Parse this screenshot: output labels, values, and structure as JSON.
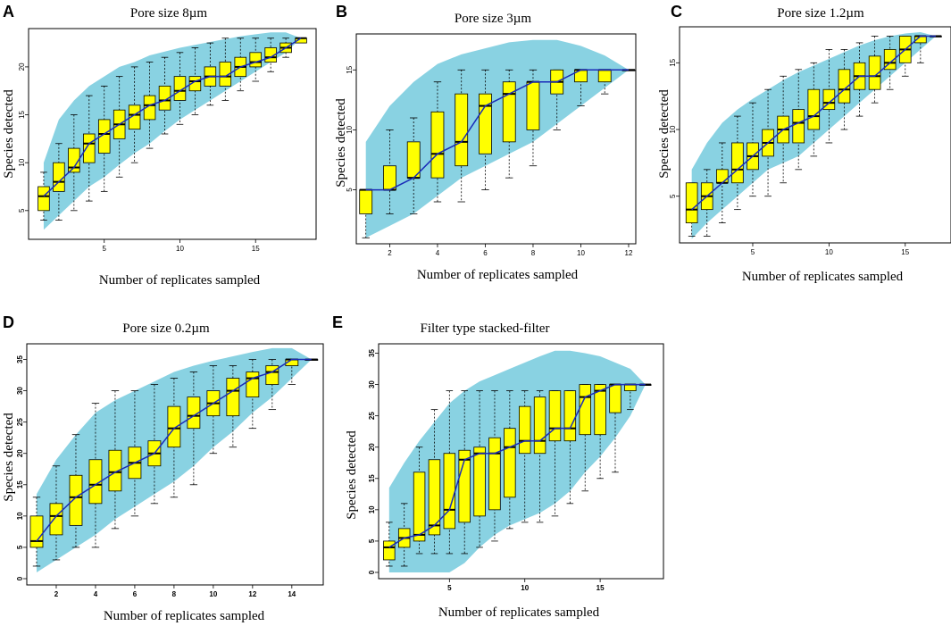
{
  "figure": {
    "colors": {
      "band": "#89d2e2",
      "box": "#ffff00",
      "line": "#1a2bb8",
      "frame": "#000000"
    }
  },
  "chart_data": [
    {
      "panel": "A",
      "type": "box",
      "title": "Pore size 8µm",
      "xlabel": "Number of replicates sampled",
      "ylabel": "Species detected",
      "xlim": [
        0,
        19
      ],
      "ylim": [
        2,
        24
      ],
      "xticks": [
        5,
        10,
        15
      ],
      "yticks": [
        5,
        10,
        15,
        20
      ],
      "x": [
        1,
        2,
        3,
        4,
        5,
        6,
        7,
        8,
        9,
        10,
        11,
        12,
        13,
        14,
        15,
        16,
        17,
        18
      ],
      "q1": [
        5,
        7,
        9,
        10,
        11,
        12.5,
        13.5,
        14.5,
        15.5,
        16.5,
        17.5,
        18,
        18,
        19,
        20,
        20.5,
        21.5,
        22.5
      ],
      "median": [
        6.5,
        8,
        9.5,
        12,
        13,
        14,
        15,
        16,
        16.5,
        17.5,
        18.5,
        19,
        19,
        20,
        20.5,
        21,
        22,
        23
      ],
      "q3": [
        7.5,
        10,
        11.5,
        13,
        14.5,
        15.5,
        16,
        17,
        18,
        19,
        19,
        20,
        20.5,
        21,
        21.5,
        22,
        22.5,
        23
      ],
      "low": [
        4,
        4,
        5,
        6,
        7,
        8.5,
        10,
        11.5,
        13,
        14,
        15,
        16,
        16.5,
        17.5,
        18.5,
        19.5,
        21,
        23
      ],
      "high": [
        9,
        12,
        15,
        17,
        18,
        19,
        20,
        20.5,
        21,
        21.5,
        22,
        22.5,
        23,
        23,
        23,
        23,
        23,
        23
      ],
      "band_upper": [
        10,
        14.5,
        16.5,
        18,
        19,
        20,
        20.5,
        21.2,
        21.6,
        22,
        22.3,
        22.6,
        22.9,
        23.2,
        23.4,
        23.6,
        23.6,
        23
      ],
      "band_lower": [
        3,
        4.5,
        6,
        7.5,
        8.5,
        9.8,
        11,
        12,
        13.3,
        14.5,
        15.5,
        16.5,
        17.5,
        18.5,
        19.5,
        20.5,
        21.5,
        23
      ]
    },
    {
      "panel": "B",
      "type": "box",
      "title": "Pore size 3µm",
      "xlabel": "Number of replicates sampled",
      "ylabel": "Species detected",
      "xlim": [
        0.6,
        12.3
      ],
      "ylim": [
        0.5,
        18
      ],
      "xticks": [
        2,
        4,
        6,
        8,
        10,
        12
      ],
      "yticks": [
        5,
        10,
        15
      ],
      "x": [
        1,
        2,
        3,
        4,
        5,
        6,
        7,
        8,
        9,
        10,
        11,
        12
      ],
      "q1": [
        3,
        5,
        6,
        6,
        7,
        8,
        9,
        10,
        13,
        14,
        14,
        15
      ],
      "median": [
        5,
        5,
        6,
        8,
        9,
        12,
        13,
        14,
        14,
        15,
        15,
        15
      ],
      "q3": [
        5,
        7,
        9,
        11.5,
        13,
        13,
        14,
        14,
        15,
        15,
        15,
        15
      ],
      "low": [
        1,
        3,
        3,
        4,
        4,
        5,
        6,
        7,
        10,
        12,
        13,
        15
      ],
      "high": [
        5,
        10,
        11,
        14,
        15,
        15,
        15,
        15,
        15,
        15,
        15,
        15
      ],
      "band_upper": [
        9,
        12,
        14,
        15.5,
        16.3,
        16.8,
        17.3,
        17.5,
        17.5,
        17,
        16.2,
        15
      ],
      "band_lower": [
        1,
        2,
        3,
        4.5,
        6,
        7,
        8,
        9,
        10.5,
        12,
        13.5,
        15
      ]
    },
    {
      "panel": "C",
      "type": "box",
      "title": "Pore size 1.2µm",
      "xlabel": "Number of replicates sampled",
      "ylabel": "Species detected",
      "xlim": [
        0.2,
        18
      ],
      "ylim": [
        1.5,
        17.7
      ],
      "xticks": [
        5,
        10,
        15
      ],
      "yticks": [
        5,
        10,
        15
      ],
      "x": [
        1,
        2,
        3,
        4,
        5,
        6,
        7,
        8,
        9,
        10,
        11,
        12,
        13,
        14,
        15,
        16,
        17
      ],
      "q1": [
        3,
        4,
        6,
        6,
        7,
        8,
        9,
        9,
        10,
        11.5,
        12,
        13,
        13,
        14.5,
        15,
        16.5,
        17
      ],
      "median": [
        4,
        5,
        6,
        7,
        8,
        9,
        10,
        10.5,
        11,
        12,
        13,
        14,
        14,
        15,
        16,
        17,
        17
      ],
      "q3": [
        6,
        6,
        7,
        9,
        9,
        10,
        11,
        11.5,
        13,
        13,
        14.5,
        15,
        15.5,
        16,
        17,
        17,
        17
      ],
      "low": [
        2,
        2,
        3,
        4,
        5,
        5,
        6,
        7,
        8,
        9,
        10,
        11,
        12,
        13,
        14,
        15,
        17
      ],
      "high": [
        6,
        7,
        9,
        11,
        12,
        13,
        14,
        14.5,
        15,
        16,
        16,
        16.5,
        17,
        17,
        17,
        17,
        17
      ],
      "band_upper": [
        7,
        9,
        10.5,
        11.5,
        12.3,
        13,
        13.7,
        14.3,
        14.8,
        15.3,
        15.8,
        16.3,
        16.7,
        17,
        17.2,
        17.3,
        17
      ],
      "band_lower": [
        1.8,
        3,
        4,
        5,
        6,
        7,
        7.5,
        8,
        9,
        10,
        11,
        12,
        13,
        14,
        15,
        16,
        17
      ]
    },
    {
      "panel": "D",
      "type": "box",
      "title": "Pore size 0.2µm",
      "xlabel": "Number of replicates sampled",
      "ylabel": "Species detected",
      "xlim": [
        0.5,
        15.6
      ],
      "ylim": [
        -1,
        37.5
      ],
      "xticks": [
        2,
        4,
        6,
        8,
        10,
        12,
        14
      ],
      "yticks": [
        0,
        5,
        10,
        15,
        20,
        25,
        30,
        35
      ],
      "x": [
        1,
        2,
        3,
        4,
        5,
        6,
        7,
        8,
        9,
        10,
        11,
        12,
        13,
        14,
        15
      ],
      "q1": [
        5,
        7,
        8.5,
        12,
        14,
        16,
        18,
        21,
        24,
        26,
        26,
        29,
        31,
        34,
        35
      ],
      "median": [
        6,
        10,
        13,
        15,
        17,
        18.5,
        20,
        24,
        26,
        28,
        30,
        32,
        33,
        35,
        35
      ],
      "q3": [
        10,
        12,
        16.5,
        19,
        20.5,
        21,
        22,
        27.5,
        29,
        30,
        32,
        33,
        34,
        35,
        35
      ],
      "low": [
        2,
        3,
        5,
        5,
        8,
        10,
        12,
        13,
        15,
        20,
        21,
        24,
        27,
        31,
        35
      ],
      "high": [
        13,
        18,
        23,
        28,
        30,
        30,
        31,
        32,
        33,
        34,
        34,
        35,
        35,
        35,
        35
      ],
      "band_upper": [
        13.5,
        19,
        23,
        26.5,
        28.5,
        30,
        31.5,
        33,
        34,
        34.8,
        35.5,
        36.2,
        36.8,
        36.8,
        35
      ],
      "band_lower": [
        1,
        3,
        5,
        7,
        9.5,
        11.5,
        13.5,
        15.5,
        18,
        21,
        23.5,
        26.5,
        29,
        32,
        35
      ]
    },
    {
      "panel": "E",
      "type": "box",
      "title": "Filter type stacked-filter",
      "xlabel": "Number of replicates sampled",
      "ylabel": "Species detected",
      "xlim": [
        0.3,
        19.2
      ],
      "ylim": [
        -1,
        36.5
      ],
      "xticks": [
        5,
        10,
        15
      ],
      "yticks": [
        0,
        5,
        10,
        15,
        20,
        25,
        30,
        35
      ],
      "x": [
        1,
        2,
        3,
        4,
        5,
        6,
        7,
        8,
        9,
        10,
        11,
        12,
        13,
        14,
        15,
        16,
        17,
        18
      ],
      "q1": [
        2,
        4,
        5,
        6,
        7,
        8,
        9,
        10,
        12,
        19,
        19,
        21,
        21,
        22,
        22,
        25.5,
        29,
        30
      ],
      "median": [
        4,
        5.5,
        6,
        7.5,
        10,
        18,
        19,
        19,
        20,
        21,
        21,
        23,
        23,
        28,
        29,
        30,
        30,
        30
      ],
      "q3": [
        5,
        7,
        16,
        18,
        19,
        19.5,
        20,
        21.5,
        23,
        26.5,
        28,
        29,
        29,
        30,
        30,
        30,
        30,
        30
      ],
      "low": [
        1,
        1,
        3,
        3,
        3,
        3,
        4,
        5,
        7,
        8,
        8,
        9,
        11,
        13,
        15,
        16,
        26,
        30
      ],
      "high": [
        8,
        11,
        20,
        26,
        29,
        29,
        29,
        29,
        29,
        29,
        29,
        29,
        29,
        30,
        30,
        30,
        30,
        30
      ],
      "band_upper": [
        13.5,
        17.5,
        21,
        24,
        27,
        29,
        30.5,
        31.5,
        32.5,
        33.5,
        34.5,
        35.4,
        35.4,
        35,
        34.5,
        33.5,
        32.5,
        30
      ],
      "band_lower": [
        0,
        0,
        0,
        0,
        0,
        1.5,
        4,
        6,
        7.5,
        8.5,
        9.5,
        11,
        13,
        16,
        18.5,
        21.5,
        25,
        30
      ]
    }
  ]
}
